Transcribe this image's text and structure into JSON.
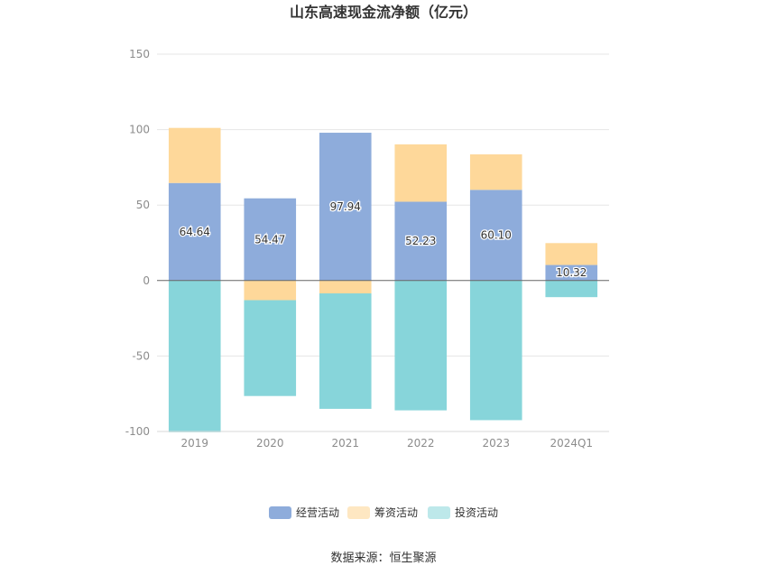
{
  "chart_data": {
    "type": "bar",
    "stacked": true,
    "title": "山东高速现金流净额（亿元）",
    "categories": [
      "2019",
      "2020",
      "2021",
      "2022",
      "2023",
      "2024Q1"
    ],
    "series": [
      {
        "name": "经营活动",
        "color": "#8eacdb",
        "values": [
          64.64,
          54.47,
          97.94,
          52.23,
          60.1,
          10.32
        ],
        "labels": [
          "64.64",
          "54.47",
          "97.94",
          "52.23",
          "60.10",
          "10.32"
        ]
      },
      {
        "name": "筹资活动",
        "color": "#fed89a",
        "values": [
          36.5,
          -13.0,
          -8.5,
          38.0,
          23.5,
          14.5
        ]
      },
      {
        "name": "投资活动",
        "color": "#87d5da",
        "values": [
          -100.5,
          -63.5,
          -76.5,
          -86.0,
          -92.5,
          -11.0
        ]
      }
    ],
    "yticks": [
      "150",
      "100",
      "50",
      "0",
      "-50",
      "-100"
    ],
    "ylim": [
      -100,
      150
    ],
    "legend_position": "bottom",
    "legend_colors": [
      "#8eacdb",
      "#fee7c2",
      "#bde8ea"
    ],
    "grid": true
  },
  "source_text": "数据来源：恒生聚源"
}
